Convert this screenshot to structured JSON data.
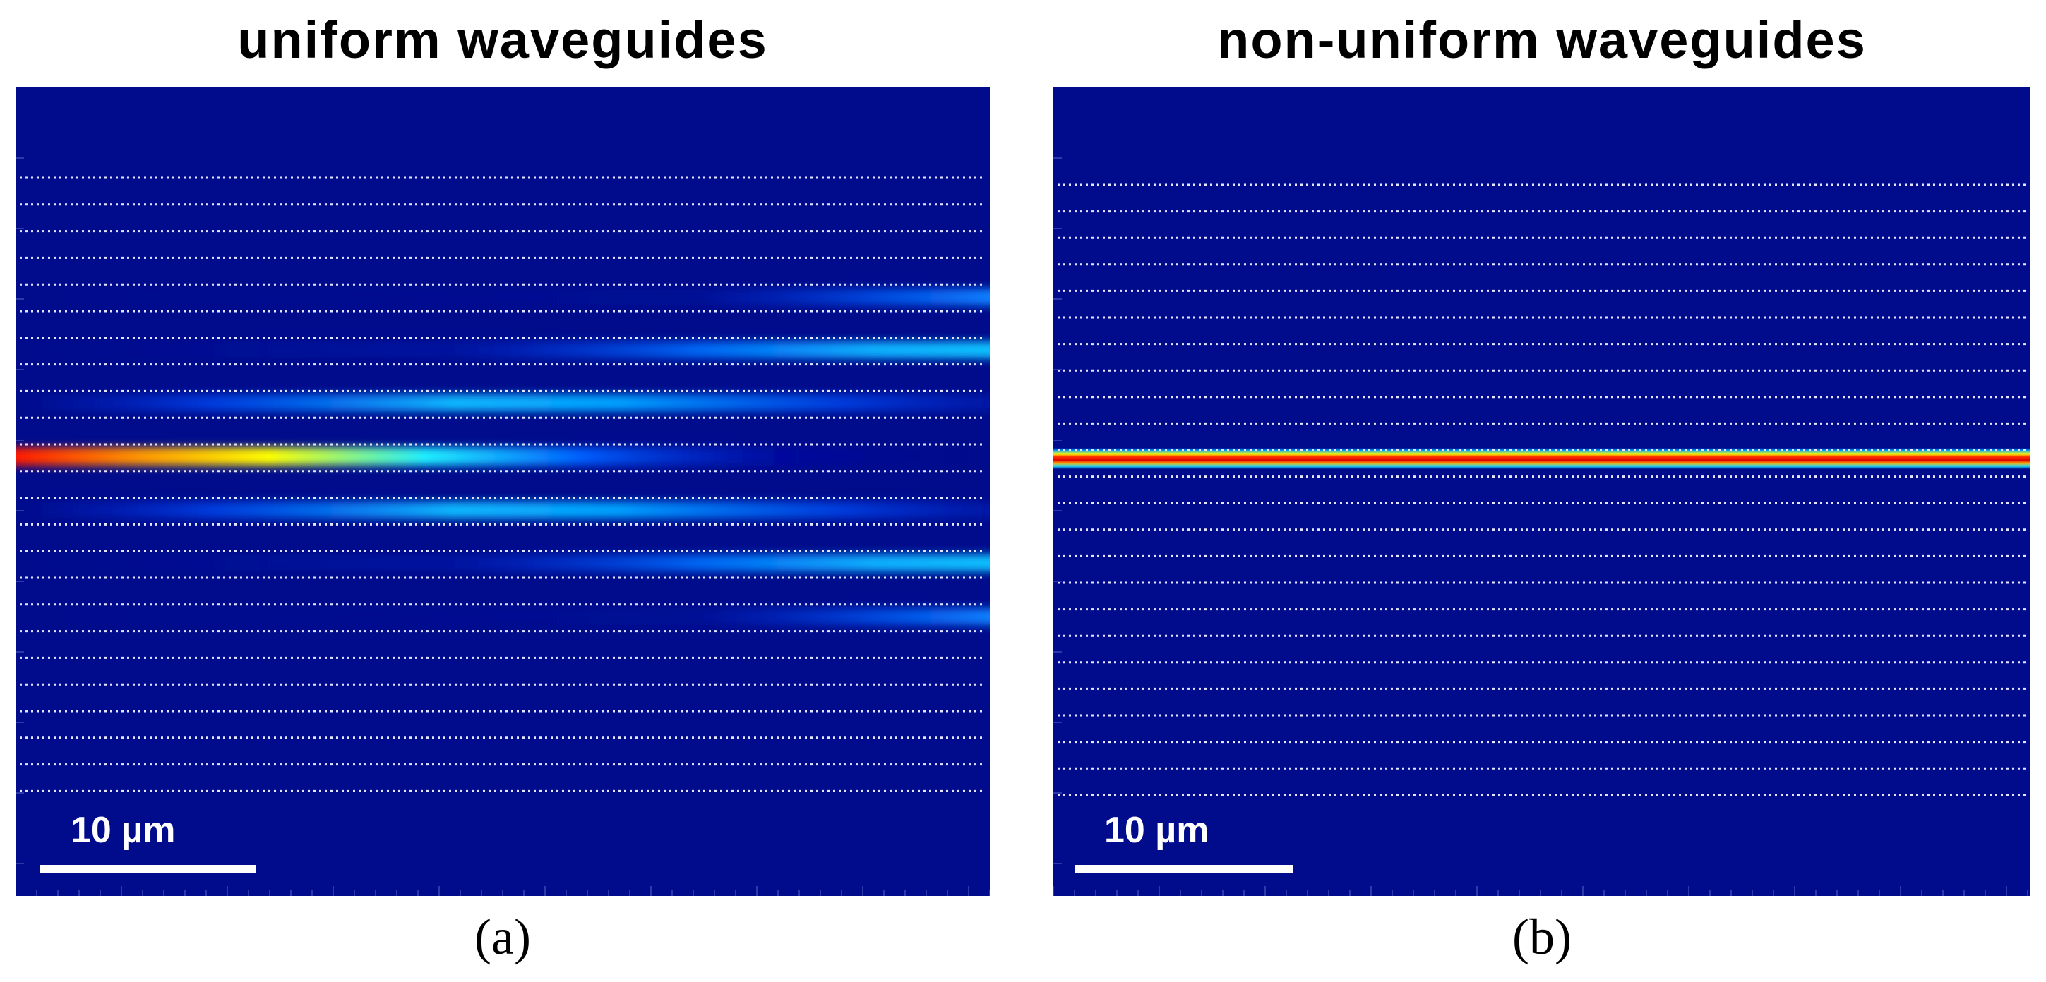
{
  "panels": [
    {
      "id": "a",
      "title": "uniform waveguides",
      "caption": "(a)",
      "scale_bar_label": "10 µm",
      "waveguide_count": 24,
      "input_waveguide_index": 11,
      "field_behavior": "discrete diffraction spreading into neighboring waveguides"
    },
    {
      "id": "b",
      "title": "non-uniform waveguides",
      "caption": "(b)",
      "scale_bar_label": "10 µm",
      "waveguide_count": 24,
      "input_waveguide_index": 11,
      "field_behavior": "light stays confined in the input waveguide"
    }
  ],
  "colors": {
    "background": "#000c8c",
    "waveguide_line": "#e6e6ff",
    "scale_bar": "#ffffff",
    "peak": "#ff0000"
  }
}
